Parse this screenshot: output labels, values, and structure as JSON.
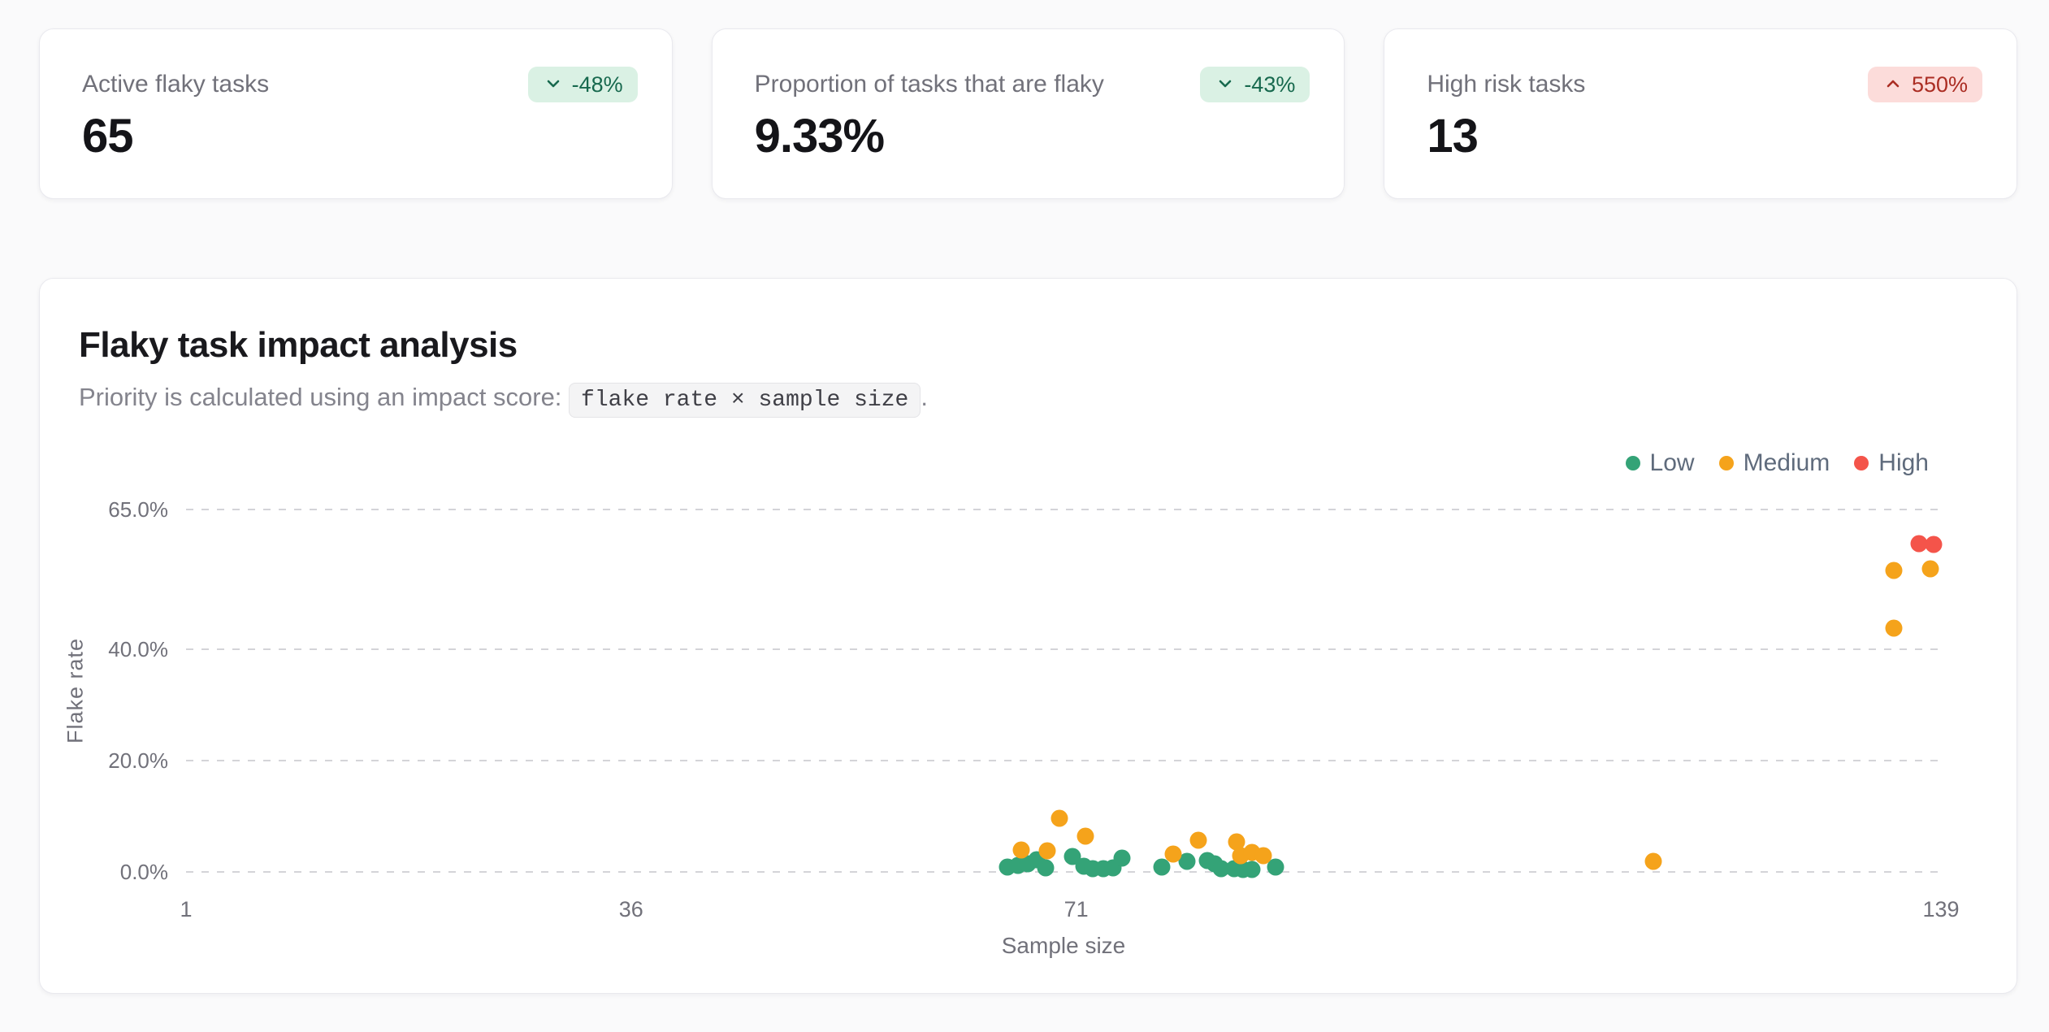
{
  "page": {
    "background": "#fafafb"
  },
  "stats": {
    "cards": [
      {
        "title": "Active flaky tasks",
        "value": "65",
        "badge": {
          "label": "-48%",
          "direction": "down",
          "tone": "positive"
        }
      },
      {
        "title": "Proportion of tasks that are flaky",
        "value": "9.33%",
        "badge": {
          "label": "-43%",
          "direction": "down",
          "tone": "positive"
        }
      },
      {
        "title": "High risk tasks",
        "value": "13",
        "badge": {
          "label": "550%",
          "direction": "up",
          "tone": "negative"
        }
      }
    ]
  },
  "chart_card": {
    "title": "Flaky task impact analysis",
    "subtitle_prefix": "Priority is calculated using an impact score:",
    "formula_code": "flake rate × sample size",
    "subtitle_suffix": "."
  },
  "colors": {
    "low": "#34a377",
    "medium": "#f5a31b",
    "high": "#f4544a",
    "badge_positive_bg": "#daf1e4",
    "badge_positive_text": "#17694e",
    "badge_negative_bg": "#fcdcda",
    "badge_negative_text": "#ab2d23",
    "grid_line": "#d4d4d8"
  },
  "chart_data": {
    "type": "scatter",
    "title": "Flaky task impact analysis",
    "xlabel": "Sample size",
    "ylabel": "Flake rate",
    "xlim": [
      1,
      139
    ],
    "ylim": [
      0,
      65
    ],
    "x_ticks": [
      {
        "label": "1",
        "value": 1
      },
      {
        "label": "36",
        "value": 36
      },
      {
        "label": "71",
        "value": 71
      },
      {
        "label": "139",
        "value": 139
      }
    ],
    "y_ticks": [
      {
        "label": "65.0%",
        "value": 65
      },
      {
        "label": "40.0%",
        "value": 40
      },
      {
        "label": "20.0%",
        "value": 20
      },
      {
        "label": "0.0%",
        "value": 0
      }
    ],
    "grid": "horizontal-dashed",
    "legend_position": "top-right",
    "point_units": [
      "sample_size",
      "flake_rate_percent"
    ],
    "series": [
      {
        "name": "Low",
        "color": "#34a377",
        "points": [
          [
            65.6,
            0.9
          ],
          [
            66.4,
            1.2
          ],
          [
            67.2,
            1.5
          ],
          [
            67.9,
            2.2
          ],
          [
            68.6,
            0.7
          ],
          [
            70.7,
            2.8
          ],
          [
            71.6,
            1.0
          ],
          [
            72.3,
            0.6
          ],
          [
            73.1,
            0.6
          ],
          [
            73.9,
            0.7
          ],
          [
            74.6,
            2.5
          ],
          [
            77.7,
            0.9
          ],
          [
            79.7,
            1.9
          ],
          [
            81.3,
            2.0
          ],
          [
            81.9,
            1.5
          ],
          [
            82.4,
            0.6
          ],
          [
            83.4,
            0.6
          ],
          [
            84.1,
            0.4
          ],
          [
            84.8,
            0.4
          ],
          [
            86.7,
            0.9
          ]
        ]
      },
      {
        "name": "Medium",
        "color": "#f5a31b",
        "points": [
          [
            66.7,
            3.9
          ],
          [
            68.7,
            3.8
          ],
          [
            69.7,
            9.6
          ],
          [
            71.7,
            6.4
          ],
          [
            78.6,
            3.2
          ],
          [
            80.6,
            5.7
          ],
          [
            83.6,
            5.4
          ],
          [
            83.9,
            2.9
          ],
          [
            84.8,
            3.5
          ],
          [
            85.7,
            2.9
          ],
          [
            116.4,
            1.9
          ],
          [
            135.3,
            54.1
          ],
          [
            138.2,
            54.4
          ],
          [
            135.3,
            43.7
          ]
        ]
      },
      {
        "name": "High",
        "color": "#f4544a",
        "points": [
          [
            137.3,
            58.9
          ],
          [
            138.4,
            58.8
          ]
        ]
      }
    ]
  }
}
